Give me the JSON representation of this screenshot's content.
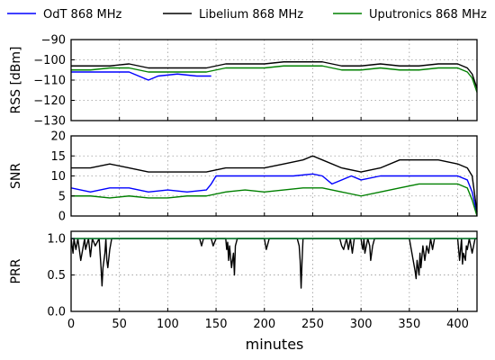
{
  "chart_data": [
    {
      "type": "line",
      "ylabel": "RSS [dBm]",
      "xlim": [
        0,
        420
      ],
      "ylim": [
        -130,
        -90
      ],
      "yticks": [
        -90,
        -100,
        -110,
        -120,
        -130
      ],
      "ytick_labels": [
        "−90",
        "−100",
        "−110",
        "−120",
        "−130"
      ],
      "series": [
        {
          "name": "OdT 868 MHz",
          "color": "#0000ff",
          "x": [
            0,
            20,
            40,
            60,
            80,
            90,
            110,
            130,
            145
          ],
          "y": [
            -106,
            -106,
            -106,
            -106,
            -110,
            -108,
            -107,
            -108,
            -108
          ]
        },
        {
          "name": "Libelium 868 MHz",
          "color": "#000000",
          "x": [
            0,
            20,
            40,
            60,
            80,
            100,
            120,
            140,
            160,
            180,
            200,
            220,
            240,
            260,
            280,
            300,
            320,
            340,
            360,
            380,
            400,
            410,
            415,
            420
          ],
          "y": [
            -103,
            -103,
            -103,
            -102,
            -104,
            -104,
            -104,
            -104,
            -102,
            -102,
            -102,
            -101,
            -101,
            -101,
            -103,
            -103,
            -102,
            -103,
            -103,
            -102,
            -102,
            -104,
            -107,
            -114
          ]
        },
        {
          "name": "Uputronics 868 MHz",
          "color": "#008000",
          "x": [
            0,
            20,
            40,
            60,
            80,
            100,
            120,
            140,
            160,
            180,
            200,
            220,
            240,
            260,
            280,
            300,
            320,
            340,
            360,
            380,
            400,
            410,
            415,
            420
          ],
          "y": [
            -105,
            -105,
            -104,
            -104,
            -106,
            -106,
            -106,
            -106,
            -104,
            -104,
            -104,
            -103,
            -103,
            -103,
            -105,
            -105,
            -104,
            -105,
            -105,
            -104,
            -104,
            -106,
            -109,
            -116
          ]
        }
      ]
    },
    {
      "type": "line",
      "ylabel": "SNR",
      "xlim": [
        0,
        420
      ],
      "ylim": [
        0,
        20
      ],
      "yticks": [
        0,
        5,
        10,
        15,
        20
      ],
      "ytick_labels": [
        "0",
        "5",
        "10",
        "15",
        "20"
      ],
      "series": [
        {
          "name": "OdT 868 MHz",
          "color": "#0000ff",
          "x": [
            0,
            20,
            40,
            60,
            80,
            100,
            120,
            140,
            145,
            150,
            170,
            190,
            210,
            230,
            250,
            260,
            270,
            290,
            300,
            320,
            340,
            360,
            380,
            400,
            410,
            415,
            420
          ],
          "y": [
            7,
            6,
            7,
            7,
            6,
            6.5,
            6,
            6.5,
            8,
            10,
            10,
            10,
            10,
            10,
            10.5,
            10,
            8,
            10,
            9,
            10,
            10,
            10,
            10,
            10,
            9,
            6,
            0.5
          ]
        },
        {
          "name": "Libelium 868 MHz",
          "color": "#000000",
          "x": [
            0,
            20,
            40,
            60,
            80,
            100,
            120,
            140,
            160,
            180,
            200,
            220,
            240,
            250,
            260,
            280,
            300,
            320,
            340,
            360,
            380,
            400,
            410,
            415,
            420
          ],
          "y": [
            12,
            12,
            13,
            12,
            11,
            11,
            11,
            11,
            12,
            12,
            12,
            13,
            14,
            15,
            14,
            12,
            11,
            12,
            14,
            14,
            14,
            13,
            12,
            10,
            1
          ]
        },
        {
          "name": "Uputronics 868 MHz",
          "color": "#008000",
          "x": [
            0,
            20,
            40,
            60,
            80,
            100,
            120,
            140,
            160,
            180,
            200,
            220,
            240,
            260,
            280,
            300,
            320,
            340,
            360,
            380,
            400,
            410,
            415,
            420
          ],
          "y": [
            5,
            5,
            4.5,
            5,
            4.5,
            4.5,
            5,
            5,
            6,
            6.5,
            6,
            6.5,
            7,
            7,
            6,
            5,
            6,
            7,
            8,
            8,
            8,
            7,
            4,
            0
          ]
        }
      ]
    },
    {
      "type": "line",
      "ylabel": "PRR",
      "xlabel": "minutes",
      "xlim": [
        0,
        420
      ],
      "ylim": [
        0,
        1.1
      ],
      "yticks": [
        0,
        0.5,
        1.0
      ],
      "ytick_labels": [
        "0.0",
        "0.5",
        "1.0"
      ],
      "xticks": [
        0,
        50,
        100,
        150,
        200,
        250,
        300,
        350,
        400
      ],
      "xtick_labels": [
        "0",
        "50",
        "100",
        "150",
        "200",
        "250",
        "300",
        "350",
        "400"
      ],
      "series": [
        {
          "name": "OdT 868 MHz",
          "color": "#0000ff",
          "x": [
            0,
            420
          ],
          "y": [
            1,
            1
          ]
        },
        {
          "name": "Libelium 868 MHz",
          "color": "#000000",
          "x": [
            0,
            2,
            3,
            5,
            7,
            10,
            14,
            15,
            18,
            20,
            22,
            25,
            29,
            31,
            32,
            33,
            35,
            36,
            37,
            38,
            40,
            42,
            133,
            135,
            137,
            145,
            147,
            150,
            160,
            161,
            162,
            163,
            164,
            166,
            168,
            169,
            170,
            172,
            200,
            202,
            204,
            205,
            234,
            236,
            237,
            238,
            239,
            240,
            278,
            280,
            282,
            285,
            287,
            289,
            291,
            293,
            300,
            301,
            302,
            303,
            304,
            307,
            309,
            310,
            312,
            314,
            318,
            350,
            352,
            354,
            356,
            357,
            358,
            360,
            361,
            362,
            364,
            366,
            368,
            370,
            372,
            374,
            376,
            378,
            400,
            402,
            403,
            404,
            405,
            406,
            408,
            409,
            410,
            412,
            415,
            418,
            420
          ],
          "y": [
            1,
            0.8,
            1,
            0.85,
            1,
            0.7,
            1,
            0.85,
            1,
            0.75,
            1,
            0.9,
            1,
            0.6,
            0.35,
            0.6,
            0.8,
            1,
            0.7,
            0.6,
            0.85,
            1,
            1,
            0.9,
            1,
            1,
            0.9,
            1,
            1,
            0.85,
            0.95,
            0.7,
            0.9,
            0.6,
            0.8,
            0.5,
            0.9,
            1,
            1,
            0.85,
            0.95,
            1,
            1,
            0.9,
            0.7,
            0.32,
            0.7,
            1,
            1,
            0.9,
            0.85,
            1,
            0.85,
            1,
            0.8,
            1,
            1,
            0.9,
            0.85,
            1,
            0.8,
            1,
            0.9,
            0.7,
            0.9,
            1,
            1,
            1,
            0.85,
            0.7,
            0.55,
            0.45,
            0.7,
            0.5,
            0.8,
            0.6,
            0.9,
            0.7,
            0.9,
            0.8,
            1,
            0.85,
            1,
            1,
            1,
            0.7,
            0.85,
            1,
            0.65,
            0.8,
            0.7,
            0.9,
            0.85,
            1,
            0.8,
            1,
            1
          ]
        },
        {
          "name": "Uputronics 868 MHz",
          "color": "#008000",
          "x": [
            0,
            420
          ],
          "y": [
            1,
            1
          ]
        }
      ]
    }
  ]
}
